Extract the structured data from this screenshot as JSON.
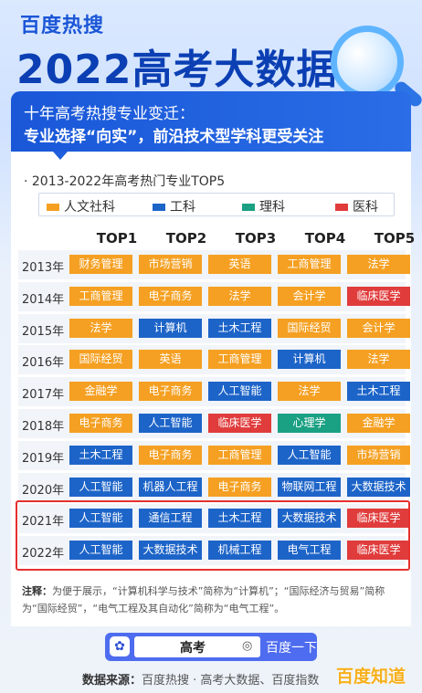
{
  "header": {
    "brand": "百度热搜",
    "title": "2022高考大数据"
  },
  "banner": {
    "line1": "十年高考热搜专业变迁：",
    "line2": "专业选择“向实”，前沿技术型学科更受关注"
  },
  "chart": {
    "subtitle": "· 2013-2022年高考热门专业TOP5",
    "legend": [
      {
        "label": "人文社科",
        "color": "#f5a022"
      },
      {
        "label": "工科",
        "color": "#1d64c8"
      },
      {
        "label": "理科",
        "color": "#1aa083"
      },
      {
        "label": "医科",
        "color": "#e03c3c"
      }
    ],
    "headers": [
      "TOP1",
      "TOP2",
      "TOP3",
      "TOP4",
      "TOP5"
    ],
    "rows": [
      {
        "year": "2013年",
        "items": [
          [
            "财务管理",
            "humanities"
          ],
          [
            "市场营销",
            "humanities"
          ],
          [
            "英语",
            "humanities"
          ],
          [
            "工商管理",
            "humanities"
          ],
          [
            "法学",
            "humanities"
          ]
        ]
      },
      {
        "year": "2014年",
        "items": [
          [
            "工商管理",
            "humanities"
          ],
          [
            "电子商务",
            "humanities"
          ],
          [
            "法学",
            "humanities"
          ],
          [
            "会计学",
            "humanities"
          ],
          [
            "临床医学",
            "medicine"
          ]
        ]
      },
      {
        "year": "2015年",
        "items": [
          [
            "法学",
            "humanities"
          ],
          [
            "计算机",
            "engineering"
          ],
          [
            "土木工程",
            "engineering"
          ],
          [
            "国际经贸",
            "humanities"
          ],
          [
            "会计学",
            "humanities"
          ]
        ]
      },
      {
        "year": "2016年",
        "items": [
          [
            "国际经贸",
            "humanities"
          ],
          [
            "英语",
            "humanities"
          ],
          [
            "工商管理",
            "humanities"
          ],
          [
            "计算机",
            "engineering"
          ],
          [
            "法学",
            "humanities"
          ]
        ]
      },
      {
        "year": "2017年",
        "items": [
          [
            "金融学",
            "humanities"
          ],
          [
            "电子商务",
            "humanities"
          ],
          [
            "人工智能",
            "engineering"
          ],
          [
            "法学",
            "humanities"
          ],
          [
            "土木工程",
            "engineering"
          ]
        ]
      },
      {
        "year": "2018年",
        "items": [
          [
            "电子商务",
            "humanities"
          ],
          [
            "人工智能",
            "engineering"
          ],
          [
            "临床医学",
            "medicine"
          ],
          [
            "心理学",
            "science"
          ],
          [
            "金融学",
            "humanities"
          ]
        ]
      },
      {
        "year": "2019年",
        "items": [
          [
            "土木工程",
            "engineering"
          ],
          [
            "电子商务",
            "humanities"
          ],
          [
            "工商管理",
            "humanities"
          ],
          [
            "人工智能",
            "engineering"
          ],
          [
            "市场营销",
            "humanities"
          ]
        ]
      },
      {
        "year": "2020年",
        "items": [
          [
            "人工智能",
            "engineering"
          ],
          [
            "机器人工程",
            "engineering"
          ],
          [
            "电子商务",
            "humanities"
          ],
          [
            "物联网工程",
            "engineering"
          ],
          [
            "大数据技术",
            "engineering"
          ]
        ]
      },
      {
        "year": "2021年",
        "items": [
          [
            "人工智能",
            "engineering"
          ],
          [
            "通信工程",
            "engineering"
          ],
          [
            "土木工程",
            "engineering"
          ],
          [
            "大数据技术",
            "engineering"
          ],
          [
            "临床医学",
            "medicine"
          ]
        ]
      },
      {
        "year": "2022年",
        "items": [
          [
            "人工智能",
            "engineering"
          ],
          [
            "大数据技术",
            "engineering"
          ],
          [
            "机械工程",
            "engineering"
          ],
          [
            "电气工程",
            "engineering"
          ],
          [
            "临床医学",
            "medicine"
          ]
        ]
      }
    ]
  },
  "note": {
    "label": "注释：",
    "text": "为便于展示，“计算机科学与技术”简称为“计算机”；“国际经济与贸易”简称为“国际经贸”，“电气工程及其自动化”简称为“电气工程”。"
  },
  "search": {
    "query": "高考",
    "button": "百度一下",
    "paw": "✿",
    "camera": "◎"
  },
  "source": {
    "label": "数据来源：",
    "text": "百度热搜 · 高考大数据、百度指数"
  },
  "watermark": "百度知道"
}
